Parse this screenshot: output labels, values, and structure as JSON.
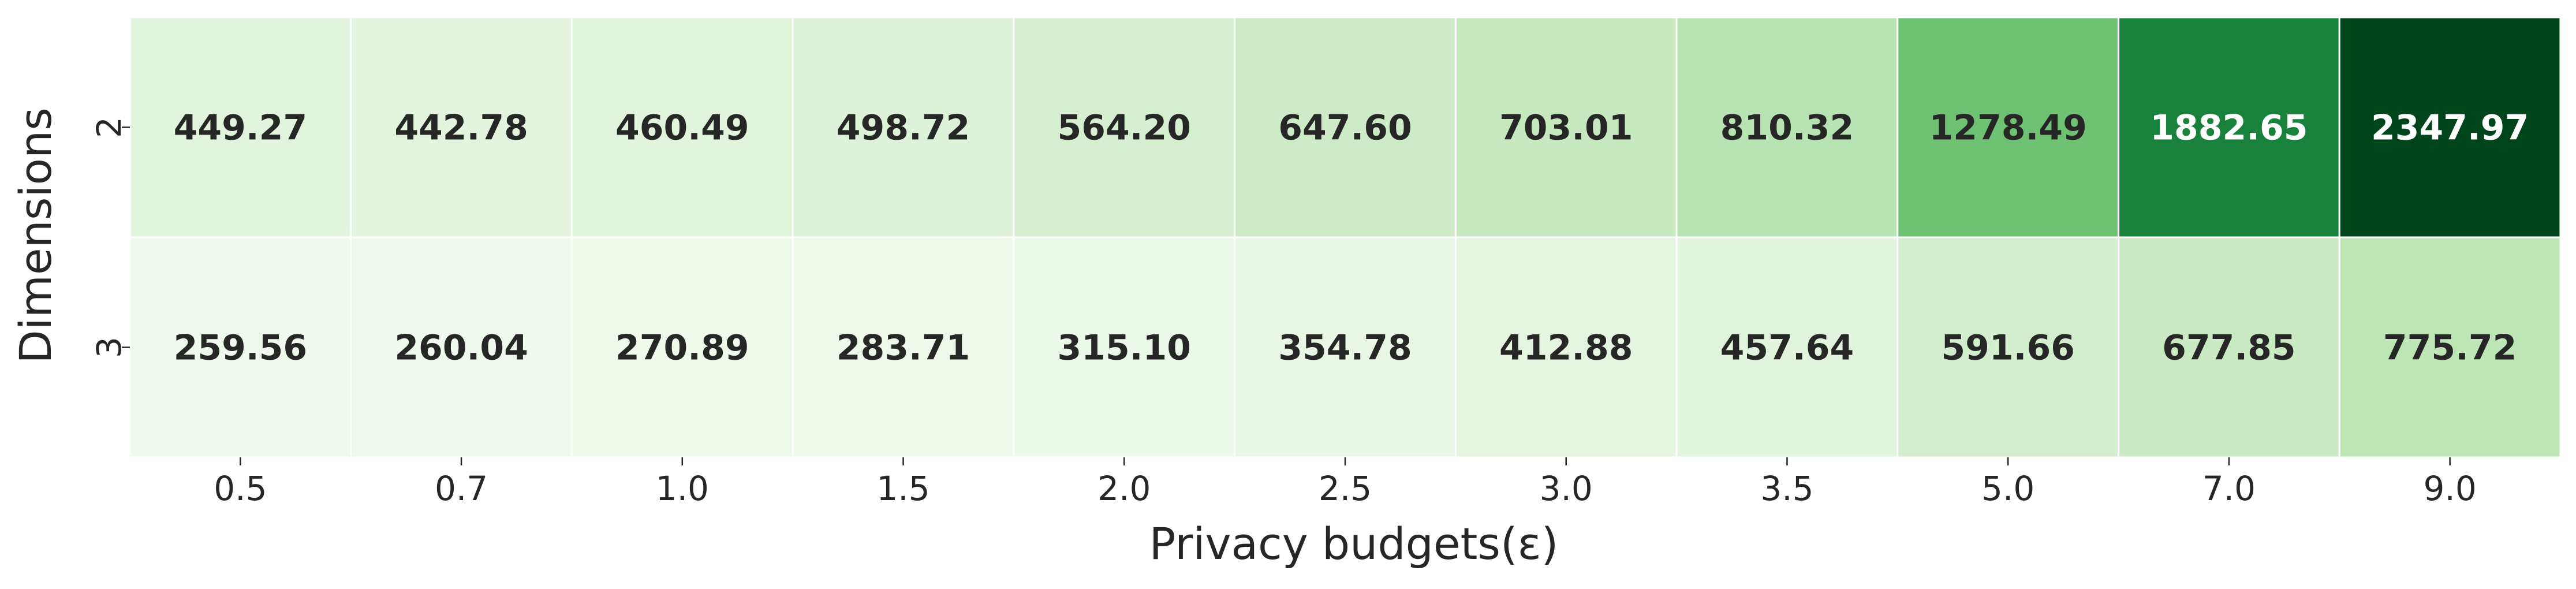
{
  "chart_data": {
    "type": "heatmap",
    "title": "",
    "xlabel": "Privacy budgets(ε)",
    "ylabel": "Dimensions",
    "x_categories": [
      "0.5",
      "0.7",
      "1.0",
      "1.5",
      "2.0",
      "2.5",
      "3.0",
      "3.5",
      "5.0",
      "7.0",
      "9.0"
    ],
    "y_categories": [
      "2",
      "3"
    ],
    "values": [
      [
        449.27,
        442.78,
        460.49,
        498.72,
        564.2,
        647.6,
        703.01,
        810.32,
        1278.49,
        1882.65,
        2347.97
      ],
      [
        259.56,
        260.04,
        270.89,
        283.71,
        315.1,
        354.78,
        412.88,
        457.64,
        591.66,
        677.85,
        775.72
      ]
    ],
    "value_labels": [
      [
        "449.27",
        "442.78",
        "460.49",
        "498.72",
        "564.20",
        "647.60",
        "703.01",
        "810.32",
        "1278.49",
        "1882.65",
        "2347.97"
      ],
      [
        "259.56",
        "260.04",
        "270.89",
        "283.71",
        "315.10",
        "354.78",
        "412.88",
        "457.64",
        "591.66",
        "677.85",
        "775.72"
      ]
    ],
    "colormap": "Greens",
    "grid": false,
    "legend": "none"
  }
}
